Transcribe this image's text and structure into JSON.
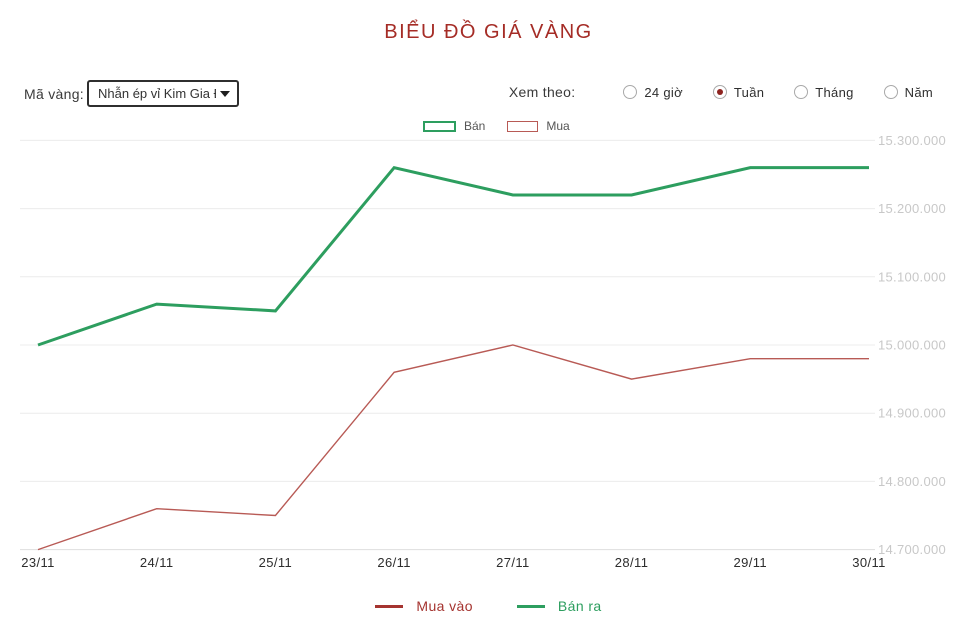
{
  "page": {
    "title": "BIỂU ĐỒ GIÁ VÀNG",
    "title_color": "#a52c26"
  },
  "controls": {
    "gold_code_label": "Mã vàng:",
    "gold_code_value": "Nhẫn ép vỉ Kim Gia Đ",
    "view_by_label": "Xem theo:",
    "view_options": [
      {
        "label": "24 giờ",
        "selected": false
      },
      {
        "label": "Tuần",
        "selected": true
      },
      {
        "label": "Tháng",
        "selected": false
      },
      {
        "label": "Năm",
        "selected": false
      }
    ]
  },
  "top_legend": [
    {
      "label": "Bán",
      "color": "#2d9e5f"
    },
    {
      "label": "Mua",
      "color": "#b85a55"
    }
  ],
  "bottom_legend": [
    {
      "label": "Mua vào",
      "color": "#a53430"
    },
    {
      "label": "Bán ra",
      "color": "#2d9e5f"
    }
  ],
  "chart_data": {
    "type": "line",
    "categories": [
      "23/11",
      "24/11",
      "25/11",
      "26/11",
      "27/11",
      "28/11",
      "29/11",
      "30/11"
    ],
    "series": [
      {
        "name": "Bán",
        "color": "#2d9e5f",
        "width": 3,
        "values": [
          15000000,
          15060000,
          15050000,
          15260000,
          15220000,
          15220000,
          15260000,
          15260000
        ]
      },
      {
        "name": "Mua",
        "color": "#b85a55",
        "width": 1.4,
        "values": [
          14700000,
          14760000,
          14750000,
          14960000,
          15000000,
          14950000,
          14980000,
          14980000
        ]
      }
    ],
    "ylim": [
      14700000,
      15300000
    ],
    "ytick_step": 100000,
    "ytick_labels": [
      "14.700.000",
      "14.800.000",
      "14.900.000",
      "15.000.000",
      "15.100.000",
      "15.200.000",
      "15.300.000"
    ],
    "grid": true,
    "legend_position": "top-center",
    "yaxis_side": "right"
  }
}
